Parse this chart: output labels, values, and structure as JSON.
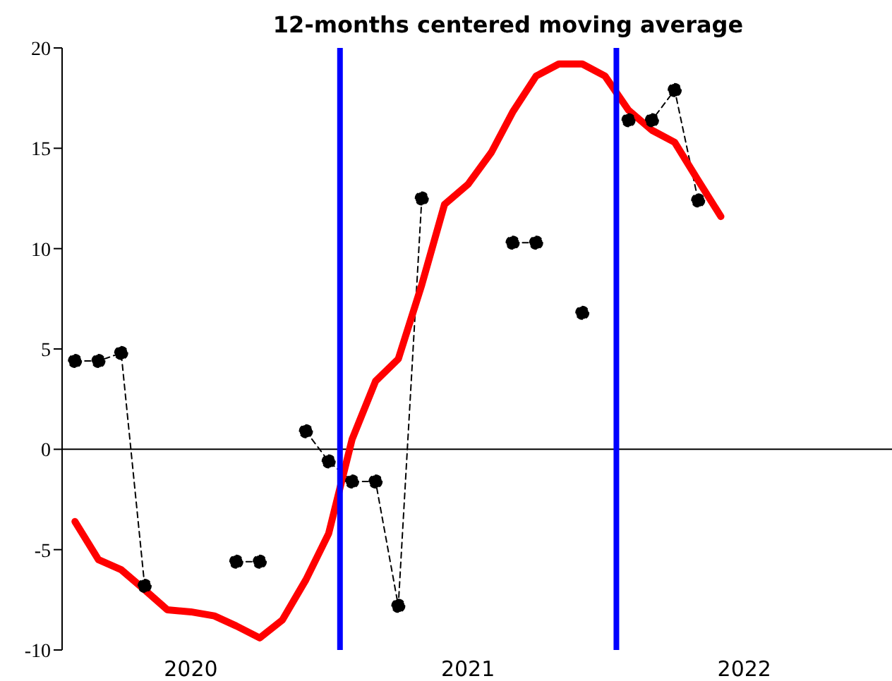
{
  "chart_data": {
    "type": "line",
    "title": "12-months centered moving average",
    "x": [
      "2019-08",
      "2019-09",
      "2019-10",
      "2019-11",
      "2019-12",
      "2020-01",
      "2020-02",
      "2020-03",
      "2020-04",
      "2020-05",
      "2020-06",
      "2020-07",
      "2020-08",
      "2020-09",
      "2020-10",
      "2020-11",
      "2020-12",
      "2021-01",
      "2021-02",
      "2021-03",
      "2021-04",
      "2021-05",
      "2021-06",
      "2021-07",
      "2021-08",
      "2021-09",
      "2021-10",
      "2021-11",
      "2021-12"
    ],
    "series": [
      {
        "color": "#000000",
        "line_style": "dashed",
        "marker": "circle",
        "values": [
          4.4,
          4.4,
          4.8,
          -6.8,
          null,
          null,
          null,
          -5.6,
          -5.6,
          null,
          0.9,
          -0.6,
          -1.6,
          -1.6,
          -7.8,
          12.5,
          null,
          null,
          null,
          10.3,
          10.3,
          null,
          6.8,
          null,
          16.4,
          16.4,
          17.9,
          12.4,
          null
        ]
      },
      {
        "color": "#ff0000",
        "line_style": "solid",
        "marker": "none",
        "values": [
          -3.6,
          -5.5,
          -6.0,
          -7.0,
          -8.0,
          -8.1,
          -8.3,
          -8.8,
          -9.4,
          -8.5,
          -6.5,
          -4.2,
          0.5,
          3.4,
          4.5,
          8.2,
          12.2,
          13.2,
          14.8,
          16.8,
          18.6,
          19.2,
          19.2,
          18.6,
          16.9,
          15.9,
          15.3,
          13.4,
          11.6
        ]
      }
    ],
    "xlim": [
      "2019-07-15",
      "2022-07-15"
    ],
    "xticks": [
      {
        "value": "2020-01-01",
        "label": "2020"
      },
      {
        "value": "2021-01-01",
        "label": "2021"
      },
      {
        "value": "2022-01-01",
        "label": "2022"
      }
    ],
    "ylim": [
      -10,
      20
    ],
    "yticks": [
      -10,
      -5,
      0,
      5,
      10,
      15,
      20
    ],
    "ref_lines": [
      {
        "axis": "y",
        "value": 0,
        "color": "#000000"
      },
      {
        "axis": "x",
        "value": "2020-07-16",
        "color": "#0000ff"
      },
      {
        "axis": "x",
        "value": "2021-07-16",
        "color": "#0000ff"
      }
    ],
    "grid": false
  }
}
